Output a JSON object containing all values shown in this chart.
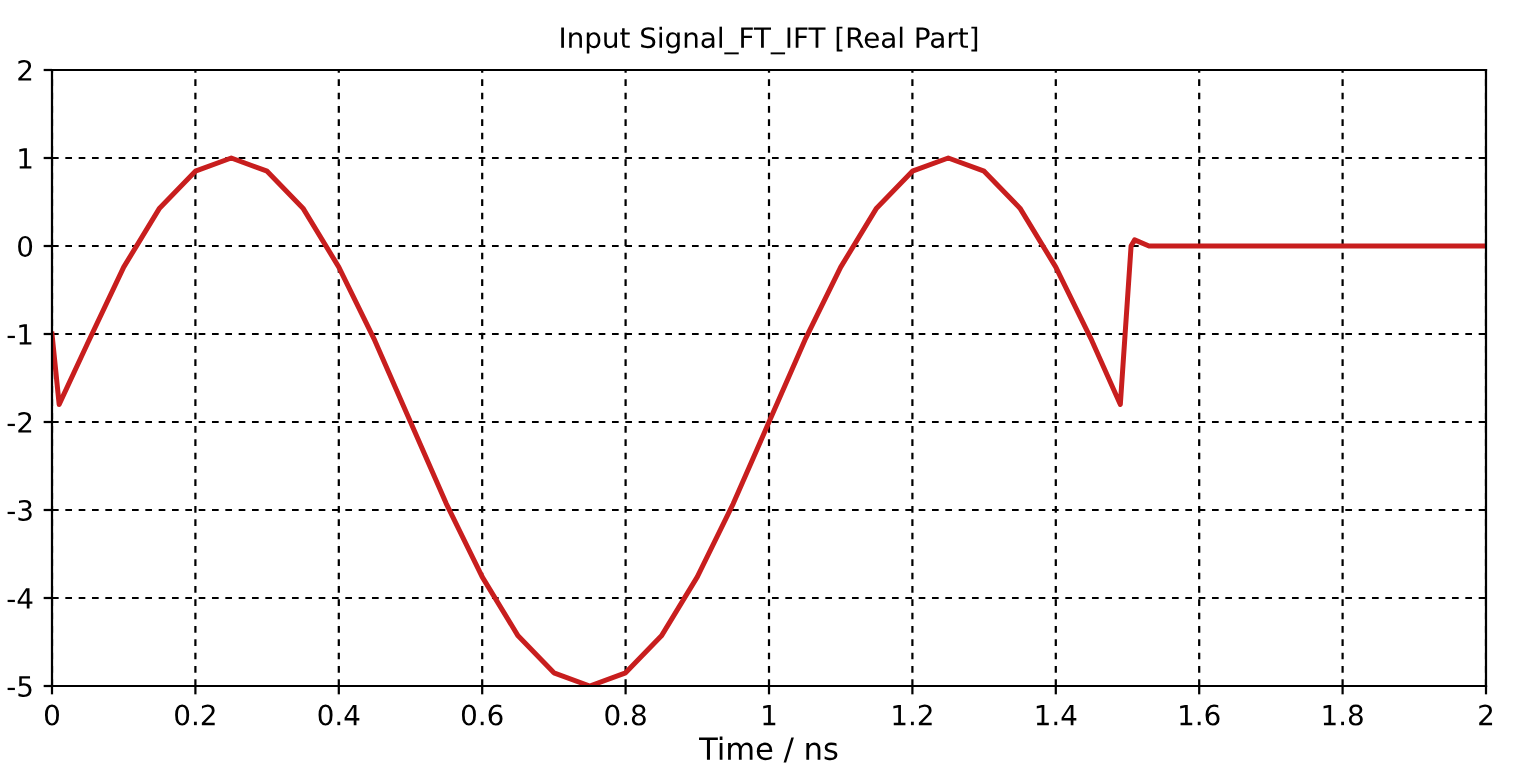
{
  "chart_data": {
    "type": "line",
    "title": "Input Signal_FT_IFT [Real Part]",
    "xlabel": "Time / ns",
    "x": [
      0,
      0.01,
      0.05,
      0.1,
      0.15,
      0.2,
      0.25,
      0.3,
      0.35,
      0.4,
      0.45,
      0.5,
      0.55,
      0.6,
      0.65,
      0.7,
      0.75,
      0.8,
      0.85,
      0.9,
      0.95,
      1.0,
      1.05,
      1.1,
      1.15,
      1.2,
      1.25,
      1.3,
      1.35,
      1.4,
      1.45,
      1.49,
      1.505,
      1.51,
      1.53,
      1.6,
      1.8,
      2.0
    ],
    "series": [
      {
        "color": "#c81e1e",
        "values": [
          -1.0,
          -1.8,
          -1.1,
          -0.24,
          0.43,
          0.85,
          1.0,
          0.85,
          0.43,
          -0.24,
          -1.07,
          -2.0,
          -2.93,
          -3.76,
          -4.43,
          -4.85,
          -5.0,
          -4.85,
          -4.43,
          -3.76,
          -2.93,
          -2.0,
          -1.07,
          -0.24,
          0.43,
          0.85,
          1.0,
          0.85,
          0.43,
          -0.24,
          -1.07,
          -1.8,
          0.0,
          0.07,
          0.0,
          0.0,
          0.0,
          0.0
        ]
      }
    ],
    "xlim": [
      0,
      2
    ],
    "xticks": [
      0,
      0.2,
      0.4,
      0.6,
      0.8,
      1,
      1.2,
      1.4,
      1.6,
      1.8,
      2
    ],
    "ylim": [
      -5,
      2
    ],
    "yticks": [
      -5,
      -4,
      -3,
      -2,
      -1,
      0,
      1,
      2
    ],
    "grid": true,
    "marker": "none",
    "line_style": "solid"
  }
}
